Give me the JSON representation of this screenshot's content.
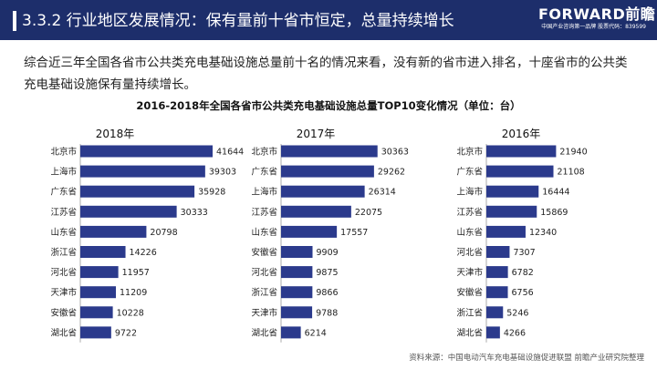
{
  "header": {
    "title": "3.3.2 行业地区发展情况：保有量前十省市恒定，总量持续增长",
    "brand_name": "FORWARD前瞻",
    "brand_sub": "中国产业咨询第一品牌  股票代码：839599"
  },
  "intro": "综合近三年全国各省市公共类充电基础设施总量前十名的情况来看，没有新的省市进入排名，十座省市的公共类充电基础设施保有量持续增长。",
  "source": "资料来源：中国电动汽车充电基础设施促进联盟 前瞻产业研究院整理",
  "colors": {
    "header": "#1d2e6b",
    "bar": "#2b3a8c"
  },
  "chart_data": {
    "type": "bar",
    "orientation": "horizontal",
    "title": "2016-2018年全国各省市公共类充电基础设施总量TOP10变化情况（单位：台）",
    "panels": [
      {
        "title": "2018年",
        "categories": [
          "北京市",
          "上海市",
          "广东省",
          "江苏省",
          "山东省",
          "浙江省",
          "河北省",
          "天津市",
          "安徽省",
          "湖北省"
        ],
        "values": [
          41644,
          39303,
          35928,
          30333,
          20798,
          14226,
          11957,
          11209,
          10228,
          9722
        ]
      },
      {
        "title": "2017年",
        "categories": [
          "北京市",
          "广东省",
          "上海市",
          "江苏省",
          "山东省",
          "安徽省",
          "河北省",
          "浙江省",
          "天津市",
          "湖北省"
        ],
        "values": [
          30363,
          29262,
          26314,
          22075,
          17557,
          9909,
          9875,
          9866,
          9788,
          6214
        ]
      },
      {
        "title": "2016年",
        "categories": [
          "北京市",
          "广东省",
          "上海市",
          "江苏省",
          "山东省",
          "河北省",
          "天津市",
          "安徽省",
          "浙江省",
          "湖北省"
        ],
        "values": [
          21940,
          21108,
          16444,
          15869,
          12340,
          7307,
          6782,
          6756,
          5246,
          4266
        ]
      }
    ]
  }
}
